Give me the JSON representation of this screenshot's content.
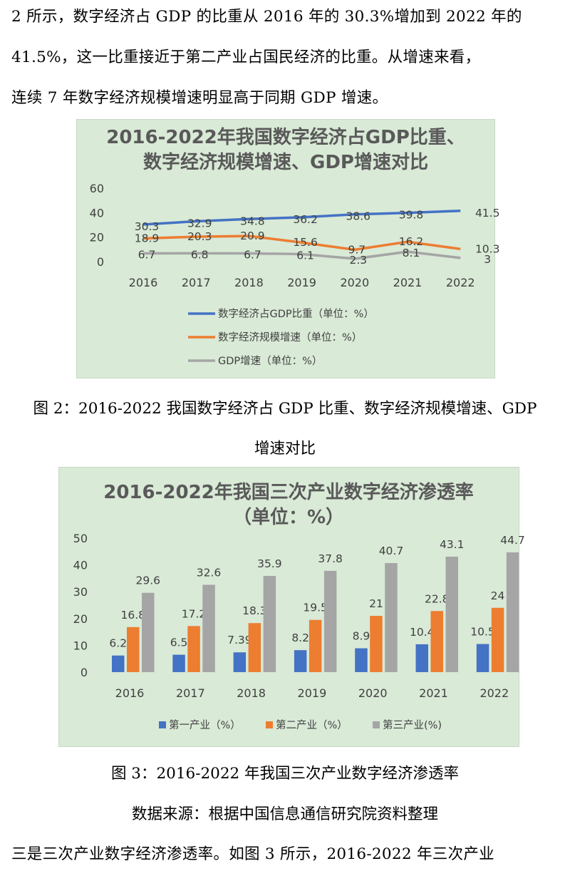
{
  "text": {
    "line1": "2 所示，数字经济占 GDP 的比重从 2016 年的 30.3%增加到 2022 年的",
    "line2": "41.5%，这一比重接近于第二产业占国民经济的比重。从增速来看，",
    "line3": "连续 7 年数字经济规模增速明显高于同期 GDP 增速。",
    "caption2_line1": "图 2：2016-2022 我国数字经济占 GDP 比重、数字经济规模增速、GDP",
    "caption2_line2": "增速对比",
    "caption3": "图 3：2016-2022 年我国三次产业数字经济渗透率",
    "source": "数据来源：根据中国信息通信研究院资料整理",
    "line_last": "三是三次产业数字经济渗透率。如图 3 所示，2016-2022 年三次产业"
  },
  "colors": {
    "chart_bg": "#d9ead7",
    "blue": "#4472c4",
    "orange": "#ed7d31",
    "gray": "#a5a5a5",
    "title_text": "#595959",
    "axis_text": "#404040"
  },
  "chart_data": [
    {
      "type": "line",
      "title": "2016-2022年我国数字经济占GDP比重、",
      "subtitle": "数字经济规模增速、GDP增速对比",
      "categories": [
        "2016",
        "2017",
        "2018",
        "2019",
        "2020",
        "2021",
        "2022"
      ],
      "ylim": [
        0,
        60
      ],
      "yticks": [
        "0",
        "20",
        "40",
        "60"
      ],
      "grid": false,
      "legend_position": "bottom",
      "series": [
        {
          "name": "数字经济占GDP比重（单位：%）",
          "values": [
            30.3,
            32.9,
            34.8,
            36.2,
            38.6,
            39.8,
            41.5
          ],
          "labels": [
            "30.3",
            "32.9",
            "34.8",
            "36.2",
            "38.6",
            "39.8",
            "41.5"
          ]
        },
        {
          "name": "数字经济规模增速（单位：%）",
          "values": [
            18.9,
            20.3,
            20.9,
            15.6,
            9.7,
            16.2,
            10.3
          ],
          "labels": [
            "18.9",
            "20.3",
            "20.9",
            "15.6",
            "9.7",
            "16.2",
            "10.3"
          ]
        },
        {
          "name": "GDP增速（单位：%）",
          "values": [
            6.7,
            6.8,
            6.7,
            6.1,
            2.3,
            8.1,
            3
          ],
          "labels": [
            "6.7",
            "6.8",
            "6.7",
            "6.1",
            "2.3",
            "8.1",
            "3"
          ]
        }
      ]
    },
    {
      "type": "bar",
      "title": "2016-2022年我国三次产业数字经济渗透率",
      "subtitle": "（单位：%）",
      "categories": [
        "2016",
        "2017",
        "2018",
        "2019",
        "2020",
        "2021",
        "2022"
      ],
      "ylim": [
        0,
        50
      ],
      "yticks": [
        "0",
        "10",
        "20",
        "30",
        "40",
        "50"
      ],
      "grid": false,
      "legend_position": "bottom",
      "series": [
        {
          "name": "第一产业（%）",
          "values": [
            6.2,
            6.5,
            7.39,
            8.2,
            8.9,
            10.4,
            10.5
          ],
          "labels": [
            "6.2",
            "6.5",
            "7.39",
            "8.2",
            "8.9",
            "10.4",
            "10.5"
          ]
        },
        {
          "name": "第二产业（%）",
          "values": [
            16.8,
            17.2,
            18.3,
            19.5,
            21,
            22.8,
            24
          ],
          "labels": [
            "16.8",
            "17.2",
            "18.3",
            "19.5",
            "21",
            "22.8",
            "24"
          ]
        },
        {
          "name": "第三产业(%)",
          "values": [
            29.6,
            32.6,
            35.9,
            37.8,
            40.7,
            43.1,
            44.7
          ],
          "labels": [
            "29.6",
            "32.6",
            "35.9",
            "37.8",
            "40.7",
            "43.1",
            "44.7"
          ]
        }
      ]
    }
  ]
}
